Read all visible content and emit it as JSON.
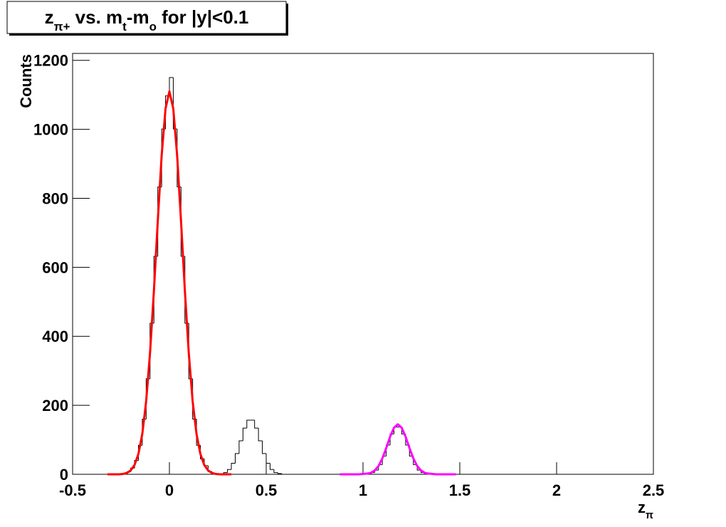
{
  "chart_data": {
    "type": "histogram",
    "title": [
      {
        "text": "z"
      },
      {
        "text": "π+",
        "script": "sub"
      },
      {
        "text": " vs. m"
      },
      {
        "text": "t",
        "script": "sub"
      },
      {
        "text": "-m"
      },
      {
        "text": "o",
        "script": "sub"
      },
      {
        "text": " for |y|<0.1"
      }
    ],
    "x_label": [
      {
        "text": "z"
      },
      {
        "text": "π",
        "script": "sub"
      }
    ],
    "y_label": "Counts",
    "color": "#000000",
    "bins": [
      -0.3,
      -0.28,
      -0.26,
      -0.24,
      -0.22,
      -0.2,
      -0.18,
      -0.16,
      -0.14,
      -0.12,
      -0.1,
      -0.08,
      -0.06,
      -0.04,
      -0.02,
      0,
      0.02,
      0.04,
      0.06,
      0.08,
      0.1,
      0.12,
      0.14,
      0.16,
      0.18,
      0.2,
      0.22,
      0.24,
      0.26,
      0.28,
      0.3,
      0.32,
      0.34,
      0.36,
      0.38,
      0.4,
      0.42,
      0.44,
      0.46,
      0.48,
      0.5,
      0.52,
      0.54,
      0.56,
      0.58,
      0.6,
      0.62,
      0.64,
      0.66,
      0.68,
      0.7,
      0.72,
      0.74,
      0.76,
      0.78,
      0.8,
      0.82,
      0.84,
      0.86,
      0.88,
      0.9,
      0.92,
      0.94,
      0.96,
      0.98,
      1,
      1.02,
      1.04,
      1.06,
      1.08,
      1.1,
      1.12,
      1.14,
      1.16,
      1.18,
      1.2,
      1.22,
      1.24,
      1.26,
      1.28,
      1.3,
      1.32,
      1.34,
      1.36,
      1.38,
      1.4,
      1.42,
      1.44,
      1.46,
      1.48,
      1.5
    ],
    "values": [
      0,
      0,
      1,
      3,
      7,
      18,
      40,
      84,
      160,
      277,
      438,
      632,
      833,
      1001,
      1097,
      1150,
      1001,
      833,
      632,
      438,
      277,
      160,
      84,
      45,
      25,
      8,
      3,
      1,
      2,
      5,
      14,
      32,
      60,
      97,
      134,
      157,
      157,
      134,
      97,
      60,
      32,
      14,
      5,
      2,
      0,
      0,
      0,
      0,
      0,
      0,
      0,
      0,
      0,
      0,
      0,
      0,
      0,
      0,
      0,
      0,
      0,
      0,
      0,
      0,
      0,
      0,
      2,
      5,
      12,
      28,
      53,
      85,
      117,
      137,
      137,
      117,
      85,
      53,
      28,
      12,
      5,
      2,
      0,
      0,
      0,
      0,
      0,
      0,
      0,
      0
    ],
    "fits": [
      {
        "color": "#ff0000",
        "x": [
          -0.32,
          -0.3,
          -0.28,
          -0.26,
          -0.24,
          -0.22,
          -0.2,
          -0.18,
          -0.16,
          -0.14,
          -0.12,
          -0.1,
          -0.08,
          -0.06,
          -0.04,
          -0.02,
          0,
          0.02,
          0.04,
          0.06,
          0.08,
          0.1,
          0.12,
          0.14,
          0.16,
          0.18,
          0.2,
          0.22,
          0.24,
          0.26,
          0.28,
          0.3,
          0.32
        ],
        "values": [
          0,
          0,
          0,
          0,
          1,
          4,
          11,
          27,
          59,
          117,
          212,
          352,
          532,
          734,
          924,
          1060,
          1110,
          1060,
          924,
          734,
          532,
          352,
          212,
          117,
          59,
          27,
          11,
          4,
          1,
          0,
          0,
          0,
          0
        ]
      },
      {
        "color": "#ff00ff",
        "x": [
          0.88,
          0.9,
          0.92,
          0.94,
          0.96,
          0.98,
          1,
          1.02,
          1.04,
          1.06,
          1.08,
          1.1,
          1.12,
          1.14,
          1.16,
          1.18,
          1.2,
          1.22,
          1.24,
          1.26,
          1.28,
          1.3,
          1.32,
          1.34,
          1.36,
          1.38,
          1.4,
          1.42,
          1.44,
          1.46,
          1.48
        ],
        "values": [
          0,
          0,
          0,
          0,
          0,
          0,
          1,
          2,
          4,
          11,
          24,
          46,
          76,
          109,
          135,
          145,
          135,
          109,
          76,
          46,
          24,
          11,
          4,
          2,
          1,
          0,
          0,
          0,
          0,
          0,
          0
        ]
      }
    ],
    "xlim": [
      -0.5,
      2.5
    ],
    "xticks": [
      -0.5,
      0,
      0.5,
      1,
      1.5,
      2,
      2.5
    ],
    "ylim": [
      0,
      1220
    ],
    "yticks": [
      0,
      200,
      400,
      600,
      800,
      1000,
      1200
    ]
  }
}
